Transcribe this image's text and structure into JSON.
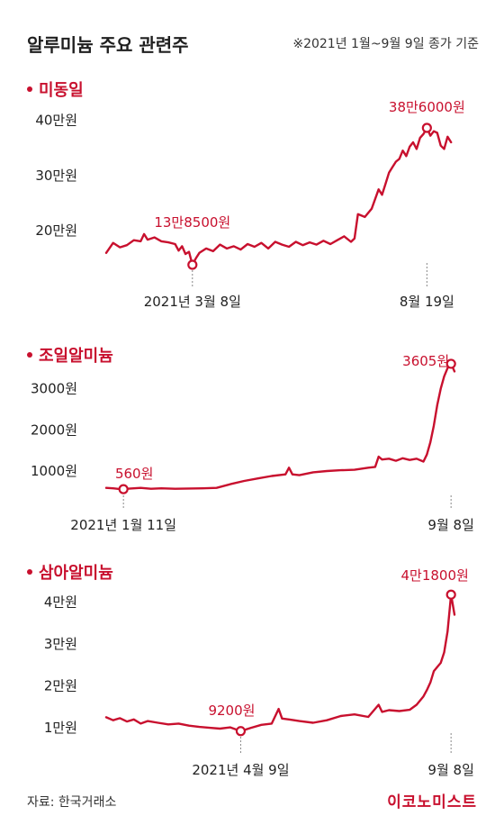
{
  "header": {
    "title": "알루미늄 주요 관련주",
    "note": "※2021년 1월~9월 9일 종가 기준"
  },
  "footer": {
    "source": "자료: 한국거래소",
    "logo": "이코노미스트"
  },
  "colors": {
    "line": "#c8102e",
    "accent": "#c8102e",
    "text": "#222222",
    "marker_fill": "#ffffff"
  },
  "chart_data": [
    {
      "type": "line",
      "title": "미동일",
      "y_ticks": [
        {
          "value": 200000,
          "label": "20만원"
        },
        {
          "value": 300000,
          "label": "30만원"
        },
        {
          "value": 400000,
          "label": "40만원"
        }
      ],
      "ylim": [
        145000,
        430000
      ],
      "x_annotations": [
        {
          "x": 0.25,
          "label": "2021년 3월 8일"
        },
        {
          "x": 0.93,
          "label": "8월 19일"
        }
      ],
      "point_labels": [
        {
          "x": 0.25,
          "y": 138500,
          "label": "13만8500원"
        },
        {
          "x": 0.93,
          "y": 386000,
          "label": "38만6000원"
        }
      ],
      "series": [
        {
          "x": [
            0,
            0.02,
            0.04,
            0.06,
            0.08,
            0.1,
            0.11,
            0.12,
            0.14,
            0.16,
            0.18,
            0.2,
            0.21,
            0.22,
            0.23,
            0.24,
            0.25,
            0.26,
            0.27,
            0.29,
            0.31,
            0.33,
            0.35,
            0.37,
            0.39,
            0.41,
            0.43,
            0.45,
            0.47,
            0.49,
            0.51,
            0.53,
            0.55,
            0.57,
            0.59,
            0.61,
            0.63,
            0.65,
            0.67,
            0.69,
            0.71,
            0.72,
            0.73,
            0.75,
            0.77,
            0.79,
            0.8,
            0.81,
            0.82,
            0.83,
            0.84,
            0.85,
            0.86,
            0.87,
            0.88,
            0.89,
            0.9,
            0.91,
            0.92,
            0.93,
            0.94,
            0.95,
            0.96,
            0.97,
            0.98,
            0.99,
            1.0
          ],
          "y": [
            160000,
            178000,
            170000,
            174000,
            183000,
            181000,
            194000,
            184000,
            188000,
            181000,
            179000,
            176000,
            164000,
            172000,
            158000,
            162000,
            138500,
            150000,
            160000,
            168000,
            163000,
            175000,
            168000,
            172000,
            166000,
            176000,
            171000,
            178000,
            168000,
            180000,
            175000,
            171000,
            180000,
            174000,
            179000,
            175000,
            182000,
            176000,
            183000,
            190000,
            180000,
            186000,
            230000,
            225000,
            240000,
            275000,
            265000,
            285000,
            305000,
            315000,
            325000,
            330000,
            345000,
            335000,
            352000,
            360000,
            348000,
            368000,
            375000,
            386000,
            372000,
            380000,
            377000,
            354000,
            348000,
            370000,
            360000
          ]
        }
      ]
    },
    {
      "type": "line",
      "title": "조일알미늄",
      "y_ticks": [
        {
          "value": 1000,
          "label": "1000원"
        },
        {
          "value": 2000,
          "label": "2000원"
        },
        {
          "value": 3000,
          "label": "3000원"
        }
      ],
      "ylim": [
        300,
        3800
      ],
      "x_annotations": [
        {
          "x": 0.05,
          "label": "2021년 1월 11일"
        },
        {
          "x": 1.0,
          "label": "9월 8일"
        }
      ],
      "point_labels": [
        {
          "x": 0.05,
          "y": 560,
          "label": "560원"
        },
        {
          "x": 1.0,
          "y": 3605,
          "label": "3605원"
        }
      ],
      "series": [
        {
          "x": [
            0,
            0.02,
            0.04,
            0.05,
            0.07,
            0.1,
            0.13,
            0.16,
            0.2,
            0.24,
            0.28,
            0.32,
            0.36,
            0.4,
            0.44,
            0.48,
            0.52,
            0.53,
            0.54,
            0.56,
            0.6,
            0.64,
            0.68,
            0.72,
            0.76,
            0.78,
            0.79,
            0.8,
            0.82,
            0.84,
            0.86,
            0.88,
            0.9,
            0.92,
            0.93,
            0.94,
            0.95,
            0.96,
            0.97,
            0.98,
            0.99,
            1.0,
            1.01
          ],
          "y": [
            590,
            580,
            560,
            560,
            575,
            590,
            570,
            580,
            570,
            575,
            580,
            590,
            680,
            760,
            820,
            880,
            920,
            1080,
            920,
            900,
            970,
            1000,
            1020,
            1030,
            1080,
            1100,
            1350,
            1280,
            1300,
            1250,
            1310,
            1270,
            1300,
            1230,
            1400,
            1700,
            2100,
            2600,
            3000,
            3300,
            3500,
            3605,
            3420
          ]
        }
      ]
    },
    {
      "type": "line",
      "title": "삼아알미늄",
      "y_ticks": [
        {
          "value": 10000,
          "label": "1만원"
        },
        {
          "value": 20000,
          "label": "2만원"
        },
        {
          "value": 30000,
          "label": "3만원"
        },
        {
          "value": 40000,
          "label": "4만원"
        }
      ],
      "ylim": [
        7000,
        44000
      ],
      "x_annotations": [
        {
          "x": 0.39,
          "label": "2021년 4월 9일"
        },
        {
          "x": 1.0,
          "label": "9월 8일"
        }
      ],
      "point_labels": [
        {
          "x": 0.39,
          "y": 9200,
          "label": "9200원"
        },
        {
          "x": 1.0,
          "y": 41800,
          "label": "4만1800원"
        }
      ],
      "series": [
        {
          "x": [
            0,
            0.02,
            0.04,
            0.06,
            0.08,
            0.1,
            0.12,
            0.15,
            0.18,
            0.21,
            0.24,
            0.27,
            0.3,
            0.33,
            0.36,
            0.39,
            0.42,
            0.45,
            0.48,
            0.5,
            0.51,
            0.53,
            0.56,
            0.6,
            0.64,
            0.68,
            0.72,
            0.76,
            0.79,
            0.8,
            0.82,
            0.85,
            0.88,
            0.9,
            0.92,
            0.93,
            0.94,
            0.95,
            0.96,
            0.97,
            0.98,
            0.99,
            1.0,
            1.01
          ],
          "y": [
            12500,
            11800,
            12300,
            11500,
            12000,
            11000,
            11600,
            11200,
            10800,
            11000,
            10500,
            10200,
            10000,
            9800,
            10100,
            9200,
            10000,
            10700,
            11000,
            14500,
            12200,
            12000,
            11600,
            11200,
            11800,
            12800,
            13200,
            12600,
            15500,
            13800,
            14200,
            14000,
            14300,
            15500,
            17500,
            19000,
            20800,
            23500,
            24500,
            25500,
            28000,
            33000,
            41800,
            37000
          ]
        }
      ]
    }
  ]
}
